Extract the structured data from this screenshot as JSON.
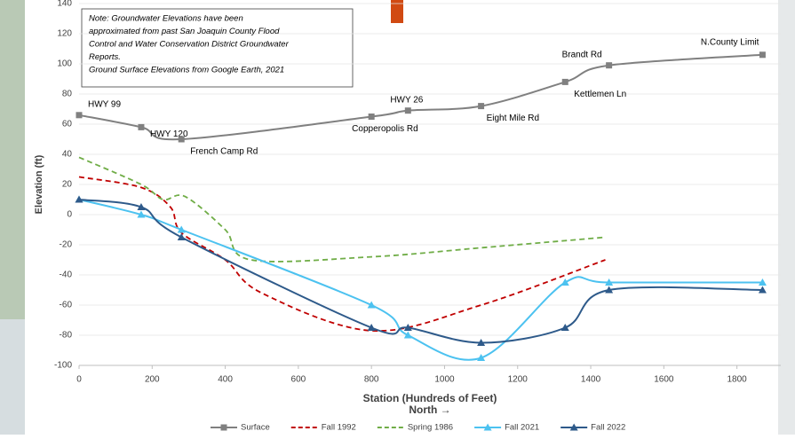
{
  "chart_data": {
    "type": "line",
    "ylabel": "Elevation (ft)",
    "xlabel": "Station (Hundreds of Feet)",
    "xlabel2": "North →",
    "note": [
      "Note: Groundwater Elevations have been",
      "approximated from past San Joaquin County Flood",
      "Control and Water Conservation District Groundwater",
      "Reports.",
      "Ground Surface Elevations from Google Earth, 2021"
    ],
    "xlim": [
      0,
      1920
    ],
    "xticks": [
      0,
      200,
      400,
      600,
      800,
      1000,
      1200,
      1400,
      1600,
      1800
    ],
    "ylim": [
      -100,
      140
    ],
    "yticks": [
      -100,
      -80,
      -60,
      -40,
      -20,
      0,
      20,
      40,
      60,
      80,
      100,
      120,
      140
    ],
    "grid": true,
    "series": [
      {
        "name": "Surface",
        "color": "#808080",
        "dash": false,
        "marker": "square",
        "x": [
          0,
          170,
          280,
          800,
          900,
          1100,
          1330,
          1450,
          1870
        ],
        "values": [
          66,
          58,
          50,
          65,
          69,
          72,
          88,
          99,
          106
        ],
        "point_labels": [
          "HWY 99",
          "HWY 120",
          "French Camp Rd",
          "Copperopolis Rd",
          "HWY 26",
          "Eight Mile Rd",
          "Kettlemen Ln",
          "Brandt Rd",
          "N.County Limit"
        ]
      },
      {
        "name": "Fall 1992",
        "color": "#c00000",
        "dash": true,
        "marker": "none",
        "x": [
          0,
          170,
          250,
          280,
          400,
          500,
          800,
          1100,
          1440
        ],
        "values": [
          25,
          18,
          5,
          -12,
          -30,
          -52,
          -77,
          -60,
          -30
        ]
      },
      {
        "name": "Spring 1986",
        "color": "#70ad47",
        "dash": true,
        "marker": "none",
        "x": [
          0,
          170,
          230,
          290,
          400,
          470,
          800,
          1100,
          1440
        ],
        "values": [
          38,
          20,
          10,
          12,
          -10,
          -30,
          -28,
          -22,
          -15
        ]
      },
      {
        "name": "Fall 2021",
        "color": "#4cc2f0",
        "dash": false,
        "marker": "triangle",
        "x": [
          0,
          170,
          280,
          800,
          900,
          1100,
          1330,
          1450,
          1870
        ],
        "values": [
          10,
          0,
          -10,
          -60,
          -80,
          -95,
          -45,
          -45,
          -45
        ]
      },
      {
        "name": "Fall 2022",
        "color": "#2e5a8a",
        "dash": false,
        "marker": "triangle",
        "x": [
          0,
          170,
          280,
          800,
          900,
          1100,
          1330,
          1450,
          1870
        ],
        "values": [
          10,
          5,
          -15,
          -75,
          -75,
          -85,
          -75,
          -50,
          -50
        ]
      }
    ]
  }
}
